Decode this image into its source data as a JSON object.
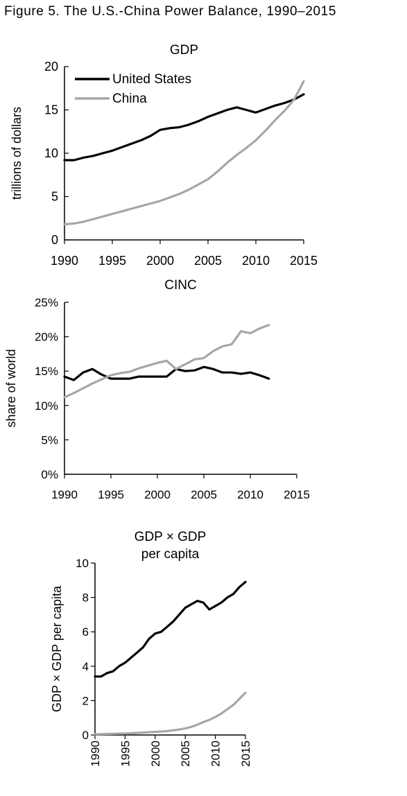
{
  "figure_title": "Figure 5.  The U.S.-China Power Balance, 1990–2015",
  "colors": {
    "united_states": "#000000",
    "china": "#a6a6a6",
    "axis": "#000000"
  },
  "chart_data": [
    {
      "type": "line",
      "title": "GDP",
      "xlabel": "",
      "ylabel": "trillions of dollars",
      "xlim": [
        1990,
        2015
      ],
      "ylim": [
        0,
        20
      ],
      "x_ticks": [
        1990,
        1995,
        2000,
        2005,
        2010,
        2015
      ],
      "x_tick_labels": [
        "1990",
        "1995",
        "2000",
        "2005",
        "2010",
        "2015"
      ],
      "y_ticks": [
        0,
        5,
        10,
        15,
        20
      ],
      "y_tick_labels": [
        "0",
        "5",
        "10",
        "15",
        "20"
      ],
      "legend": {
        "placement": "top-left",
        "entries": [
          "United States",
          "China"
        ]
      },
      "grid": false,
      "series": [
        {
          "name": "United States",
          "color": "#000000",
          "x": [
            1990,
            1991,
            1992,
            1993,
            1994,
            1995,
            1996,
            1997,
            1998,
            1999,
            2000,
            2001,
            2002,
            2003,
            2004,
            2005,
            2006,
            2007,
            2008,
            2009,
            2010,
            2011,
            2012,
            2013,
            2014,
            2015
          ],
          "values": [
            9.2,
            9.2,
            9.5,
            9.7,
            10.0,
            10.3,
            10.7,
            11.1,
            11.5,
            12.0,
            12.7,
            12.9,
            13.0,
            13.3,
            13.7,
            14.2,
            14.6,
            15.0,
            15.3,
            15.0,
            14.7,
            15.1,
            15.5,
            15.8,
            16.2,
            16.8
          ]
        },
        {
          "name": "China",
          "color": "#a6a6a6",
          "x": [
            1990,
            1991,
            1992,
            1993,
            1994,
            1995,
            1996,
            1997,
            1998,
            1999,
            2000,
            2001,
            2002,
            2003,
            2004,
            2005,
            2006,
            2007,
            2008,
            2009,
            2010,
            2011,
            2012,
            2013,
            2014,
            2015
          ],
          "values": [
            1.8,
            1.9,
            2.1,
            2.4,
            2.7,
            3.0,
            3.3,
            3.6,
            3.9,
            4.2,
            4.5,
            4.9,
            5.3,
            5.8,
            6.4,
            7.0,
            7.9,
            8.9,
            9.8,
            10.6,
            11.5,
            12.6,
            13.8,
            14.9,
            16.2,
            18.3
          ]
        }
      ]
    },
    {
      "type": "line",
      "title": "CINC",
      "xlabel": "",
      "ylabel": "share of world",
      "xlim": [
        1990,
        2015
      ],
      "ylim": [
        0,
        25
      ],
      "x_ticks": [
        1990,
        1995,
        2000,
        2005,
        2010,
        2015
      ],
      "x_tick_labels": [
        "1990",
        "1995",
        "2000",
        "2005",
        "2010",
        "2015"
      ],
      "y_ticks": [
        0,
        5,
        10,
        15,
        20,
        25
      ],
      "y_tick_labels": [
        "0%",
        "5%",
        "10%",
        "15%",
        "20%",
        "25%"
      ],
      "grid": false,
      "series": [
        {
          "name": "",
          "color": "#000000",
          "x": [
            1990,
            1991,
            1992,
            1993,
            1994,
            1995,
            1996,
            1997,
            1998,
            1999,
            2000,
            2001,
            2002,
            2003,
            2004,
            2005,
            2006,
            2007,
            2008,
            2009,
            2010,
            2011,
            2012
          ],
          "values": [
            14.2,
            13.7,
            14.8,
            15.3,
            14.5,
            13.9,
            13.9,
            13.9,
            14.2,
            14.2,
            14.2,
            14.2,
            15.3,
            15.0,
            15.1,
            15.6,
            15.3,
            14.8,
            14.8,
            14.6,
            14.8,
            14.4,
            13.9
          ]
        },
        {
          "name": "",
          "color": "#a6a6a6",
          "x": [
            1990,
            1991,
            1992,
            1993,
            1994,
            1995,
            1996,
            1997,
            1998,
            1999,
            2000,
            2001,
            2002,
            2003,
            2004,
            2005,
            2006,
            2007,
            2008,
            2009,
            2010,
            2011,
            2012
          ],
          "values": [
            11.2,
            11.8,
            12.5,
            13.2,
            13.8,
            14.4,
            14.7,
            14.9,
            15.4,
            15.8,
            16.2,
            16.5,
            15.3,
            16.0,
            16.7,
            16.9,
            17.9,
            18.6,
            18.9,
            20.8,
            20.5,
            21.2,
            21.7
          ]
        }
      ]
    },
    {
      "type": "line",
      "title": "GDP × GDP\nper capita",
      "title_lines": [
        "GDP × GDP",
        "per capita"
      ],
      "xlabel": "",
      "ylabel": "GDP × GDP per capita",
      "xlim": [
        1990,
        2015
      ],
      "ylim": [
        0,
        10
      ],
      "x_ticks": [
        1990,
        1995,
        2000,
        2005,
        2010,
        2015
      ],
      "x_tick_labels": [
        "1990",
        "1995",
        "2000",
        "2005",
        "2010",
        "2015"
      ],
      "y_ticks": [
        0,
        2,
        4,
        6,
        8,
        10
      ],
      "y_tick_labels": [
        "0",
        "2",
        "4",
        "6",
        "8",
        "10"
      ],
      "grid": false,
      "series": [
        {
          "name": "",
          "color": "#000000",
          "x": [
            1990,
            1991,
            1992,
            1993,
            1994,
            1995,
            1996,
            1997,
            1998,
            1999,
            2000,
            2001,
            2002,
            2003,
            2004,
            2005,
            2006,
            2007,
            2008,
            2009,
            2010,
            2011,
            2012,
            2013,
            2014,
            2015
          ],
          "values": [
            3.4,
            3.4,
            3.6,
            3.7,
            4.0,
            4.2,
            4.5,
            4.8,
            5.1,
            5.6,
            5.9,
            6.0,
            6.3,
            6.6,
            7.0,
            7.4,
            7.6,
            7.8,
            7.7,
            7.3,
            7.5,
            7.7,
            8.0,
            8.2,
            8.6,
            8.9
          ]
        },
        {
          "name": "",
          "color": "#a6a6a6",
          "x": [
            1990,
            1991,
            1992,
            1993,
            1994,
            1995,
            1996,
            1997,
            1998,
            1999,
            2000,
            2001,
            2002,
            2003,
            2004,
            2005,
            2006,
            2007,
            2008,
            2009,
            2010,
            2011,
            2012,
            2013,
            2014,
            2015
          ],
          "values": [
            0.05,
            0.05,
            0.06,
            0.07,
            0.08,
            0.09,
            0.1,
            0.12,
            0.14,
            0.16,
            0.18,
            0.2,
            0.23,
            0.27,
            0.32,
            0.38,
            0.47,
            0.6,
            0.75,
            0.88,
            1.05,
            1.25,
            1.5,
            1.75,
            2.1,
            2.45
          ]
        }
      ]
    }
  ]
}
